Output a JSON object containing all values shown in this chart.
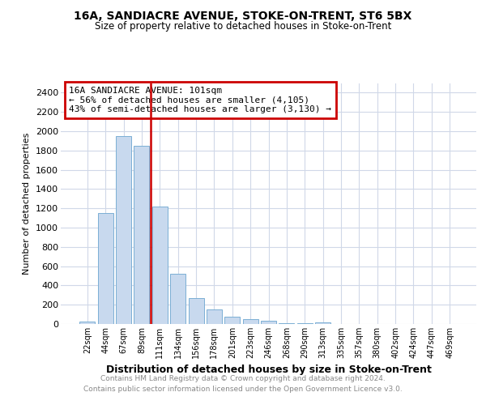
{
  "title1": "16A, SANDIACRE AVENUE, STOKE-ON-TRENT, ST6 5BX",
  "title2": "Size of property relative to detached houses in Stoke-on-Trent",
  "xlabel": "Distribution of detached houses by size in Stoke-on-Trent",
  "ylabel": "Number of detached properties",
  "annotation_title": "16A SANDIACRE AVENUE: 101sqm",
  "annotation_line1": "← 56% of detached houses are smaller (4,105)",
  "annotation_line2": "43% of semi-detached houses are larger (3,130) →",
  "footer1": "Contains HM Land Registry data © Crown copyright and database right 2024.",
  "footer2": "Contains public sector information licensed under the Open Government Licence v3.0.",
  "bar_labels": [
    "22sqm",
    "44sqm",
    "67sqm",
    "89sqm",
    "111sqm",
    "134sqm",
    "156sqm",
    "178sqm",
    "201sqm",
    "223sqm",
    "246sqm",
    "268sqm",
    "290sqm",
    "313sqm",
    "335sqm",
    "357sqm",
    "380sqm",
    "402sqm",
    "424sqm",
    "447sqm",
    "469sqm"
  ],
  "bar_values": [
    25,
    1150,
    1950,
    1850,
    1220,
    520,
    265,
    150,
    75,
    50,
    30,
    10,
    5,
    20,
    3,
    3,
    0,
    0,
    0,
    0,
    0
  ],
  "bar_color": "#c8d9ee",
  "bar_edge_color": "#7bafd4",
  "vline_x": 3.5,
  "vline_color": "#cc0000",
  "annotation_box_color": "#cc0000",
  "ylim": [
    0,
    2500
  ],
  "yticks": [
    0,
    200,
    400,
    600,
    800,
    1000,
    1200,
    1400,
    1600,
    1800,
    2000,
    2200,
    2400
  ],
  "background_color": "#ffffff",
  "grid_color": "#d0d8e8"
}
